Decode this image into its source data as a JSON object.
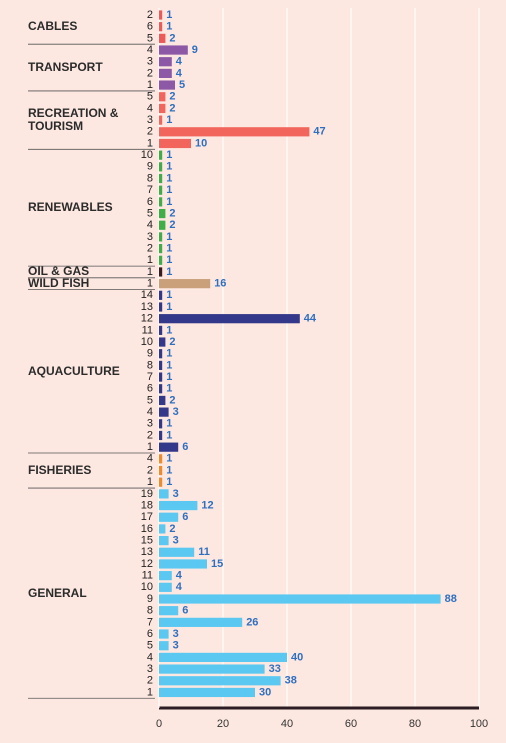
{
  "chart_data": {
    "type": "bar",
    "orientation": "horizontal",
    "xlim": [
      0,
      100
    ],
    "xticks": [
      0,
      20,
      40,
      60,
      80,
      100
    ],
    "grid": true,
    "groups": [
      {
        "name": "CABLES",
        "color": "#ee5a57",
        "categories": [
          "2",
          "6",
          "5"
        ],
        "values": [
          1,
          1,
          2
        ]
      },
      {
        "name": "TRANSPORT",
        "color": "#8d58a6",
        "categories": [
          "4",
          "3",
          "2",
          "1"
        ],
        "values": [
          9,
          4,
          4,
          5
        ]
      },
      {
        "name": "RECREATION & TOURISM",
        "color": "#f2655d",
        "categories": [
          "5",
          "4",
          "3",
          "2",
          "1"
        ],
        "values": [
          2,
          2,
          1,
          47,
          10
        ]
      },
      {
        "name": "RENEWABLES",
        "color": "#3fae49",
        "categories": [
          "10",
          "9",
          "8",
          "7",
          "6",
          "5",
          "4",
          "3",
          "2",
          "1"
        ],
        "values": [
          1,
          1,
          1,
          1,
          1,
          2,
          2,
          1,
          1,
          1
        ]
      },
      {
        "name": "OIL & GAS",
        "color": "#3b1c1c",
        "categories": [
          "1"
        ],
        "values": [
          1
        ]
      },
      {
        "name": "WILD FISH",
        "color": "#c9a07a",
        "categories": [
          "1"
        ],
        "values": [
          16
        ]
      },
      {
        "name": "AQUACULTURE",
        "color": "#33388a",
        "categories": [
          "14",
          "13",
          "12",
          "11",
          "10",
          "9",
          "8",
          "7",
          "6",
          "5",
          "4",
          "3",
          "2",
          "1"
        ],
        "values": [
          1,
          1,
          44,
          1,
          2,
          1,
          1,
          1,
          1,
          2,
          3,
          1,
          1,
          6
        ]
      },
      {
        "name": "FISHERIES",
        "color": "#f08a2c",
        "categories": [
          "4",
          "2",
          "1"
        ],
        "values": [
          1,
          1,
          1
        ]
      },
      {
        "name": "GENERAL",
        "color": "#5bc8f2",
        "categories": [
          "19",
          "18",
          "17",
          "16",
          "15",
          "13",
          "12",
          "11",
          "10",
          "9",
          "8",
          "7",
          "6",
          "5",
          "4",
          "3",
          "2",
          "1"
        ],
        "values": [
          3,
          12,
          6,
          2,
          3,
          11,
          15,
          4,
          4,
          88,
          6,
          26,
          3,
          3,
          40,
          33,
          38,
          30
        ]
      }
    ]
  }
}
